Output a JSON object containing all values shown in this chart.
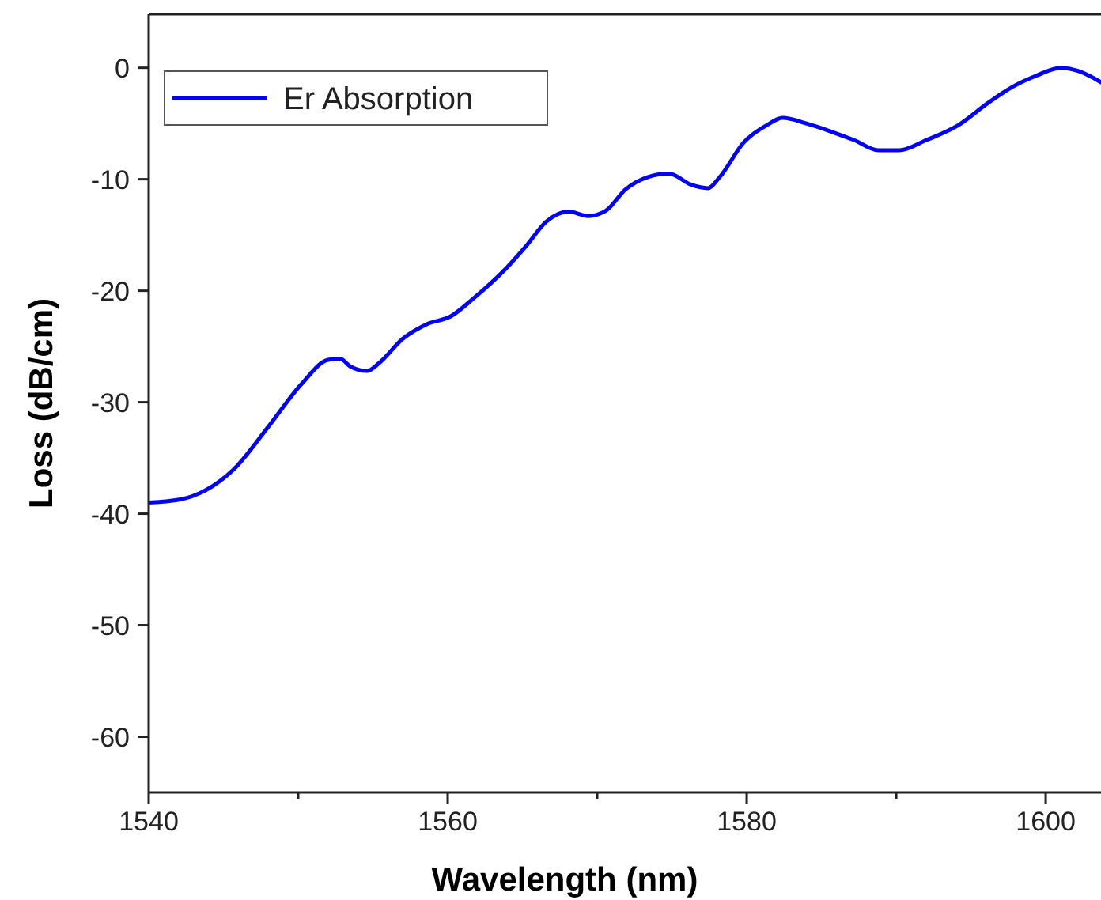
{
  "chart_data": {
    "type": "line",
    "xlabel": "Wavelength (nm)",
    "ylabel": "Loss (dB/cm)",
    "xlim": [
      1540,
      1603.7
    ],
    "ylim": [
      -65,
      4.8
    ],
    "xticks": [
      1540,
      {
        "value": 1550,
        "label": null
      },
      1560,
      {
        "value": 1570,
        "label": null
      },
      1580,
      {
        "value": 1590,
        "label": null
      },
      1600
    ],
    "yticks": [
      -60,
      -50,
      -40,
      -30,
      -20,
      -10,
      0
    ],
    "grid": false,
    "legend": "top left",
    "marker": "none",
    "line_style": "solid",
    "series": [
      {
        "name": "Er Absorption",
        "color": "#0000ff",
        "x": [
          1540,
          1542.2,
          1543.8,
          1545.7,
          1548,
          1550.2,
          1552,
          1552.8,
          1553.5,
          1554.6,
          1555.4,
          1557,
          1558.6,
          1560.2,
          1561.8,
          1563.9,
          1565.3,
          1566.6,
          1568.1,
          1569.4,
          1570.6,
          1571.9,
          1573.4,
          1574.8,
          1576.3,
          1577.4,
          1578.2,
          1579.8,
          1581.4,
          1582.4,
          1584,
          1585.6,
          1587.2,
          1588.8,
          1590.2,
          1592,
          1594.1,
          1596.2,
          1597.8,
          1599.4,
          1601,
          1602.2,
          1603.7
        ],
        "values": [
          -39,
          -38.7,
          -37.9,
          -36,
          -32.2,
          -28.4,
          -26.2,
          -26.1,
          -26.8,
          -27.2,
          -26.5,
          -24.3,
          -23,
          -22.3,
          -20.6,
          -18,
          -15.9,
          -13.8,
          -12.9,
          -13.3,
          -12.8,
          -10.9,
          -9.8,
          -9.5,
          -10.5,
          -10.8,
          -9.8,
          -6.7,
          -5.1,
          -4.5,
          -5,
          -5.7,
          -6.5,
          -7.4,
          -7.4,
          -6.5,
          -5.2,
          -3.1,
          -1.7,
          -0.7,
          0,
          -0.3,
          -1.3
        ]
      }
    ]
  }
}
